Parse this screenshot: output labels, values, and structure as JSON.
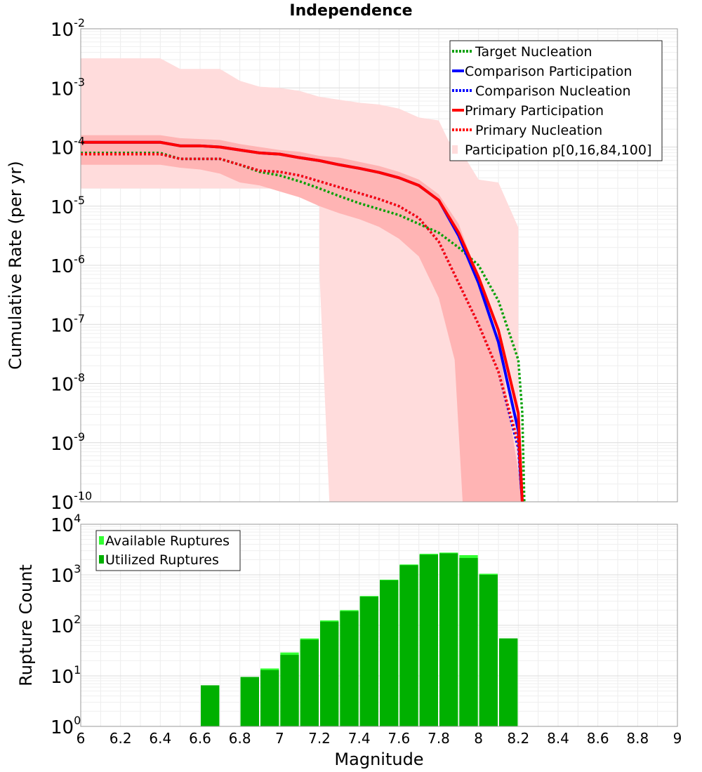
{
  "chart_data": [
    {
      "type": "line",
      "title": "Independence",
      "xlabel": "",
      "ylabel": "Cumulative Rate (per yr)",
      "xlim": [
        6,
        9
      ],
      "ylim_log10": [
        -10,
        -2
      ],
      "y_ticks": [
        {
          "base": "10",
          "exp": "-2"
        },
        {
          "base": "10",
          "exp": "-3"
        },
        {
          "base": "10",
          "exp": "-4"
        },
        {
          "base": "10",
          "exp": "-5"
        },
        {
          "base": "10",
          "exp": "-6"
        },
        {
          "base": "10",
          "exp": "-7"
        },
        {
          "base": "10",
          "exp": "-8"
        },
        {
          "base": "10",
          "exp": "-9"
        },
        {
          "base": "10",
          "exp": "-10"
        }
      ],
      "legend": {
        "location": "top-right",
        "entries": [
          {
            "label": "Target Nucleation",
            "color": "#00a000",
            "style": "dotted"
          },
          {
            "label": "Comparison Participation",
            "color": "#0000ff",
            "style": "solid"
          },
          {
            "label": "Comparison Nucleation",
            "color": "#0000ff",
            "style": "dotted"
          },
          {
            "label": "Primary Participation",
            "color": "#ff0000",
            "style": "solid"
          },
          {
            "label": "Primary Nucleation",
            "color": "#ff0000",
            "style": "dotted"
          },
          {
            "label": "Participation p[0,16,84,100]",
            "color": "#ffdcdc",
            "style": "band"
          }
        ]
      },
      "bands": [
        {
          "name": "p0-p100",
          "color": "#ffdcdc",
          "upper": [
            [
              6.0,
              -2.5
            ],
            [
              6.4,
              -2.5
            ],
            [
              6.5,
              -2.68
            ],
            [
              6.7,
              -2.68
            ],
            [
              6.8,
              -2.88
            ],
            [
              6.9,
              -2.98
            ],
            [
              7.0,
              -3.0
            ],
            [
              7.1,
              -3.05
            ],
            [
              7.2,
              -3.15
            ],
            [
              7.3,
              -3.2
            ],
            [
              7.4,
              -3.25
            ],
            [
              7.5,
              -3.28
            ],
            [
              7.6,
              -3.35
            ],
            [
              7.7,
              -3.5
            ],
            [
              7.8,
              -3.55
            ],
            [
              7.85,
              -3.9
            ],
            [
              7.9,
              -4.0
            ],
            [
              8.0,
              -4.55
            ],
            [
              8.1,
              -4.6
            ],
            [
              8.2,
              -5.36
            ],
            [
              8.2,
              -10
            ]
          ],
          "lower": [
            [
              6.0,
              -4.7
            ],
            [
              7.2,
              -4.7
            ],
            [
              7.2,
              -6.1
            ],
            [
              7.25,
              -10
            ]
          ]
        },
        {
          "name": "p16-p84",
          "color": "#ffb4b4",
          "upper": [
            [
              6.0,
              -3.8
            ],
            [
              6.4,
              -3.8
            ],
            [
              6.5,
              -3.85
            ],
            [
              6.7,
              -3.88
            ],
            [
              6.8,
              -3.95
            ],
            [
              6.9,
              -4.0
            ],
            [
              7.0,
              -4.05
            ],
            [
              7.1,
              -4.08
            ],
            [
              7.2,
              -4.15
            ],
            [
              7.3,
              -4.18
            ],
            [
              7.4,
              -4.25
            ],
            [
              7.5,
              -4.32
            ],
            [
              7.6,
              -4.42
            ],
            [
              7.7,
              -4.55
            ],
            [
              7.8,
              -4.8
            ],
            [
              7.9,
              -5.3
            ],
            [
              8.0,
              -6.2
            ],
            [
              8.1,
              -7.3
            ],
            [
              8.2,
              -9.5
            ],
            [
              8.23,
              -10
            ]
          ],
          "lower": [
            [
              6.0,
              -4.3
            ],
            [
              6.4,
              -4.3
            ],
            [
              6.5,
              -4.35
            ],
            [
              6.6,
              -4.38
            ],
            [
              6.7,
              -4.45
            ],
            [
              6.8,
              -4.6
            ],
            [
              6.9,
              -4.65
            ],
            [
              7.0,
              -4.75
            ],
            [
              7.1,
              -4.85
            ],
            [
              7.2,
              -5.0
            ],
            [
              7.3,
              -5.12
            ],
            [
              7.4,
              -5.22
            ],
            [
              7.5,
              -5.35
            ],
            [
              7.6,
              -5.55
            ],
            [
              7.7,
              -5.85
            ],
            [
              7.8,
              -6.55
            ],
            [
              7.88,
              -7.6
            ],
            [
              7.92,
              -10
            ],
            [
              8.12,
              -10
            ]
          ]
        }
      ],
      "series": [
        {
          "name": "Target Nucleation",
          "color": "#00a000",
          "style": "dotted",
          "x": [
            6.0,
            6.4,
            6.5,
            6.7,
            6.8,
            6.9,
            7.0,
            7.1,
            7.2,
            7.3,
            7.4,
            7.5,
            7.6,
            7.7,
            7.8,
            7.9,
            8.0,
            8.1,
            8.2,
            8.22,
            8.23
          ],
          "y": [
            -4.1,
            -4.1,
            -4.2,
            -4.2,
            -4.3,
            -4.42,
            -4.48,
            -4.58,
            -4.7,
            -4.83,
            -4.95,
            -5.05,
            -5.15,
            -5.3,
            -5.45,
            -5.7,
            -6.0,
            -6.6,
            -7.6,
            -8.5,
            -10
          ]
        },
        {
          "name": "Comparison Participation",
          "color": "#0000ff",
          "style": "solid",
          "x": [
            6.0,
            6.4,
            6.5,
            6.6,
            6.7,
            6.8,
            6.9,
            7.0,
            7.1,
            7.2,
            7.3,
            7.4,
            7.5,
            7.6,
            7.7,
            7.8,
            7.9,
            8.0,
            8.1,
            8.2,
            8.21,
            8.22
          ],
          "y": [
            -3.92,
            -3.92,
            -3.98,
            -3.98,
            -4.0,
            -4.05,
            -4.1,
            -4.12,
            -4.18,
            -4.23,
            -4.3,
            -4.36,
            -4.43,
            -4.52,
            -4.65,
            -4.9,
            -5.5,
            -6.3,
            -7.3,
            -8.8,
            -9.5,
            -10
          ]
        },
        {
          "name": "Comparison Nucleation",
          "color": "#0000ff",
          "style": "dotted",
          "x": [
            6.0,
            6.4,
            6.5,
            6.7,
            6.8,
            6.9,
            7.0,
            7.1,
            7.2,
            7.3,
            7.4,
            7.5,
            7.6,
            7.7,
            7.8,
            7.9,
            8.0,
            8.1,
            8.2,
            8.21,
            8.22
          ],
          "y": [
            -4.12,
            -4.12,
            -4.2,
            -4.2,
            -4.3,
            -4.4,
            -4.42,
            -4.48,
            -4.58,
            -4.68,
            -4.78,
            -4.88,
            -5.0,
            -5.2,
            -5.6,
            -6.3,
            -7.0,
            -7.8,
            -9.1,
            -9.6,
            -10
          ]
        },
        {
          "name": "Primary Participation",
          "color": "#ff0000",
          "style": "solid",
          "x": [
            6.0,
            6.4,
            6.5,
            6.6,
            6.7,
            6.8,
            6.9,
            7.0,
            7.1,
            7.2,
            7.3,
            7.4,
            7.5,
            7.6,
            7.7,
            7.8,
            7.9,
            8.0,
            8.1,
            8.2,
            8.21,
            8.22
          ],
          "y": [
            -3.92,
            -3.92,
            -3.98,
            -3.98,
            -4.0,
            -4.05,
            -4.1,
            -4.12,
            -4.18,
            -4.23,
            -4.3,
            -4.36,
            -4.43,
            -4.52,
            -4.65,
            -4.9,
            -5.45,
            -6.2,
            -7.1,
            -8.5,
            -9.3,
            -10
          ]
        },
        {
          "name": "Primary Nucleation",
          "color": "#ff0000",
          "style": "dotted",
          "x": [
            6.0,
            6.4,
            6.5,
            6.7,
            6.8,
            6.9,
            7.0,
            7.1,
            7.2,
            7.3,
            7.4,
            7.5,
            7.6,
            7.7,
            7.8,
            7.9,
            8.0,
            8.1,
            8.2,
            8.21,
            8.22
          ],
          "y": [
            -4.12,
            -4.12,
            -4.2,
            -4.2,
            -4.3,
            -4.4,
            -4.42,
            -4.48,
            -4.58,
            -4.68,
            -4.78,
            -4.88,
            -5.0,
            -5.2,
            -5.6,
            -6.3,
            -7.0,
            -7.8,
            -9.0,
            -9.5,
            -10
          ]
        }
      ]
    },
    {
      "type": "bar",
      "xlabel": "Magnitude",
      "ylabel": "Rupture Count",
      "xlim": [
        6,
        9
      ],
      "ylim_log10": [
        0,
        4
      ],
      "x_ticks": [
        "6",
        "6.2",
        "6.4",
        "6.6",
        "6.8",
        "7",
        "7.2",
        "7.4",
        "7.6",
        "7.8",
        "8",
        "8.2",
        "8.4",
        "8.6",
        "8.8",
        "9"
      ],
      "y_ticks": [
        {
          "base": "10",
          "exp": "4"
        },
        {
          "base": "10",
          "exp": "3"
        },
        {
          "base": "10",
          "exp": "2"
        },
        {
          "base": "10",
          "exp": "1"
        },
        {
          "base": "10",
          "exp": "0"
        }
      ],
      "legend": {
        "location": "top-left",
        "entries": [
          {
            "label": "Available Ruptures",
            "color": "#33ff33"
          },
          {
            "label": "Utilized Ruptures",
            "color": "#00b000"
          }
        ]
      },
      "bin_width": 0.1,
      "bins": [
        6.65,
        6.85,
        6.95,
        7.05,
        7.15,
        7.25,
        7.35,
        7.45,
        7.55,
        7.65,
        7.75,
        7.85,
        7.95,
        8.05,
        8.15
      ],
      "series": [
        {
          "name": "Available Ruptures",
          "color": "#33ff33",
          "values": [
            6.5,
            9.5,
            14,
            29,
            55,
            125,
            200,
            380,
            800,
            1600,
            2600,
            2750,
            2450,
            1050,
            55
          ]
        },
        {
          "name": "Utilized Ruptures",
          "color": "#00b000",
          "values": [
            6.5,
            9.5,
            13,
            26,
            52,
            118,
            190,
            370,
            780,
            1550,
            2500,
            2650,
            2150,
            1000,
            55
          ]
        }
      ]
    }
  ]
}
